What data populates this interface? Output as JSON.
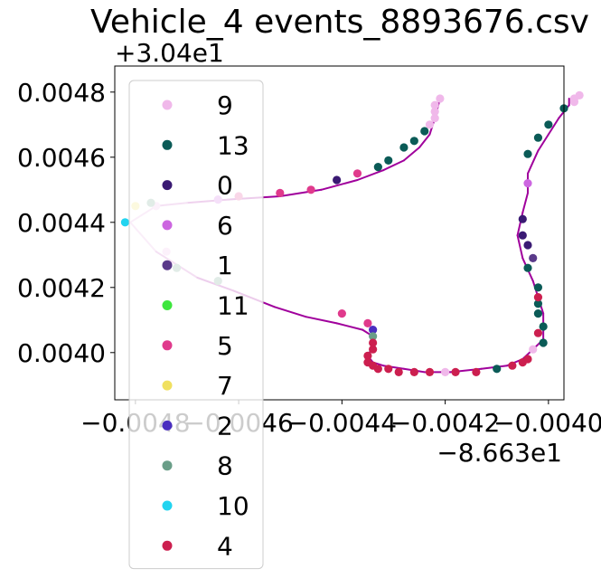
{
  "chart_data": {
    "type": "scatter",
    "title": "Vehicle_4 events_8893676.csv",
    "x_offset_label": "−8.663e1",
    "y_offset_label": "+3.04e1",
    "x_ticks": [
      {
        "value": -0.0048,
        "label": "−0.0048"
      },
      {
        "value": -0.0046,
        "label": "−0.0046"
      },
      {
        "value": -0.0044,
        "label": "−0.0044"
      },
      {
        "value": -0.0042,
        "label": "−0.0042"
      },
      {
        "value": -0.004,
        "label": "−0.0040"
      }
    ],
    "y_ticks": [
      {
        "value": 0.004,
        "label": "0.0040"
      },
      {
        "value": 0.0042,
        "label": "0.0042"
      },
      {
        "value": 0.0044,
        "label": "0.0044"
      },
      {
        "value": 0.0046,
        "label": "0.0046"
      },
      {
        "value": 0.0048,
        "label": "0.0048"
      }
    ],
    "xlim": [
      -0.00484,
      -0.00397
    ],
    "ylim": [
      0.003855,
      0.00488
    ],
    "grid": false,
    "legend_position": "upper left",
    "trajectory_colors": {
      "far": "#f0c8ec",
      "near": "#a0009c"
    },
    "trajectory": [
      [
        -0.00421,
        0.00478
      ],
      [
        -0.00422,
        0.00472
      ],
      [
        -0.00423,
        0.00467
      ],
      [
        -0.00425,
        0.00463
      ],
      [
        -0.00428,
        0.00459
      ],
      [
        -0.00432,
        0.00456
      ],
      [
        -0.00437,
        0.00453
      ],
      [
        -0.00444,
        0.0045
      ],
      [
        -0.00452,
        0.00448
      ],
      [
        -0.00462,
        0.00447
      ],
      [
        -0.0047,
        0.00446
      ],
      [
        -0.00476,
        0.00445
      ],
      [
        -0.00481,
        0.0044
      ],
      [
        -0.00476,
        0.00431
      ],
      [
        -0.00468,
        0.00423
      ],
      [
        -0.00461,
        0.00419
      ],
      [
        -0.00453,
        0.00414
      ],
      [
        -0.00447,
        0.00411
      ],
      [
        -0.00441,
        0.00409
      ],
      [
        -0.00436,
        0.00407
      ],
      [
        -0.00434,
        0.00405
      ],
      [
        -0.00434,
        0.00402
      ],
      [
        -0.00435,
        0.00399
      ],
      [
        -0.00434,
        0.00397
      ],
      [
        -0.00432,
        0.00396
      ],
      [
        -0.00428,
        0.00395
      ],
      [
        -0.00424,
        0.00394
      ],
      [
        -0.00419,
        0.00394
      ],
      [
        -0.00413,
        0.00395
      ],
      [
        -0.00408,
        0.00396
      ],
      [
        -0.00405,
        0.00398
      ],
      [
        -0.00403,
        0.00401
      ],
      [
        -0.00401,
        0.00404
      ],
      [
        -0.00401,
        0.00408
      ],
      [
        -0.00401,
        0.00412
      ],
      [
        -0.00402,
        0.00417
      ],
      [
        -0.00403,
        0.00422
      ],
      [
        -0.00405,
        0.00429
      ],
      [
        -0.00406,
        0.00436
      ],
      [
        -0.00405,
        0.00443
      ],
      [
        -0.00404,
        0.00449
      ],
      [
        -0.00404,
        0.00455
      ],
      [
        -0.00402,
        0.00462
      ],
      [
        -0.004,
        0.00467
      ],
      [
        -0.00398,
        0.00472
      ],
      [
        -0.00396,
        0.00476
      ],
      [
        -0.00396,
        0.00478
      ]
    ],
    "series": [
      {
        "name": "9",
        "color": "#f0b8ea",
        "points": [
          [
            -0.00421,
            0.00478
          ],
          [
            -0.00422,
            0.00476
          ],
          [
            -0.00422,
            0.00474
          ],
          [
            -0.00422,
            0.00472
          ],
          [
            -0.00423,
            0.0047
          ],
          [
            -0.00476,
            0.00445
          ],
          [
            -0.00474,
            0.00431
          ],
          [
            -0.0042,
            0.00394
          ],
          [
            -0.00403,
            0.00401
          ],
          [
            -0.00395,
            0.00477
          ],
          [
            -0.00394,
            0.00479
          ],
          [
            -0.00395,
            0.00478
          ]
        ]
      },
      {
        "name": "13",
        "color": "#0b5b57",
        "points": [
          [
            -0.00424,
            0.00468
          ],
          [
            -0.00426,
            0.00465
          ],
          [
            -0.00428,
            0.00463
          ],
          [
            -0.00431,
            0.00459
          ],
          [
            -0.00433,
            0.00457
          ],
          [
            -0.0041,
            0.00395
          ],
          [
            -0.00402,
            0.0042
          ],
          [
            -0.00402,
            0.00412
          ],
          [
            -0.00401,
            0.00408
          ],
          [
            -0.00401,
            0.00403
          ],
          [
            -0.00402,
            0.00415
          ],
          [
            -0.00404,
            0.00426
          ],
          [
            -0.00404,
            0.00461
          ],
          [
            -0.00402,
            0.00466
          ],
          [
            -0.004,
            0.0047
          ],
          [
            -0.00397,
            0.00475
          ]
        ]
      },
      {
        "name": "0",
        "color": "#3a1a73",
        "points": [
          [
            -0.00441,
            0.00453
          ],
          [
            -0.00405,
            0.00441
          ],
          [
            -0.00405,
            0.00436
          ],
          [
            -0.00404,
            0.00433
          ]
        ]
      },
      {
        "name": "6",
        "color": "#cc66e0",
        "points": [
          [
            -0.00464,
            0.00447
          ],
          [
            -0.00404,
            0.00452
          ]
        ]
      },
      {
        "name": "1",
        "color": "#5a3a8a",
        "points": [
          [
            -0.00403,
            0.00429
          ]
        ]
      },
      {
        "name": "11",
        "color": "#3de63d",
        "points": []
      },
      {
        "name": "5",
        "color": "#e03a8c",
        "points": [
          [
            -0.0046,
            0.00448
          ],
          [
            -0.00452,
            0.00449
          ],
          [
            -0.00446,
            0.0045
          ],
          [
            -0.00437,
            0.00455
          ],
          [
            -0.0044,
            0.00412
          ],
          [
            -0.00435,
            0.00409
          ]
        ]
      },
      {
        "name": "7",
        "color": "#f0e060",
        "points": [
          [
            -0.0048,
            0.00445
          ]
        ]
      },
      {
        "name": "2",
        "color": "#4a2ec0",
        "points": [
          [
            -0.00434,
            0.00407
          ]
        ]
      },
      {
        "name": "8",
        "color": "#6a9e88",
        "points": [
          [
            -0.00477,
            0.00446
          ],
          [
            -0.00472,
            0.00426
          ],
          [
            -0.00464,
            0.00422
          ],
          [
            -0.00434,
            0.00405
          ]
        ]
      },
      {
        "name": "10",
        "color": "#22d4f0",
        "points": [
          [
            -0.00482,
            0.0044
          ]
        ]
      },
      {
        "name": "4",
        "color": "#cc1f4f",
        "points": [
          [
            -0.00434,
            0.00403
          ],
          [
            -0.00434,
            0.00401
          ],
          [
            -0.00435,
            0.00399
          ],
          [
            -0.00435,
            0.00397
          ],
          [
            -0.00434,
            0.00396
          ],
          [
            -0.00433,
            0.00395
          ],
          [
            -0.00431,
            0.00395
          ],
          [
            -0.00429,
            0.00394
          ],
          [
            -0.00426,
            0.00394
          ],
          [
            -0.00423,
            0.00394
          ],
          [
            -0.00418,
            0.00394
          ],
          [
            -0.00414,
            0.00394
          ],
          [
            -0.00407,
            0.00396
          ],
          [
            -0.00405,
            0.00397
          ],
          [
            -0.00404,
            0.00398
          ],
          [
            -0.00402,
            0.00406
          ],
          [
            -0.00402,
            0.00417
          ]
        ]
      }
    ]
  }
}
